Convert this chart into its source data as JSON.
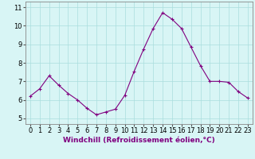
{
  "x": [
    0,
    1,
    2,
    3,
    4,
    5,
    6,
    7,
    8,
    9,
    10,
    11,
    12,
    13,
    14,
    15,
    16,
    17,
    18,
    19,
    20,
    21,
    22,
    23
  ],
  "y": [
    6.2,
    6.6,
    7.3,
    6.8,
    6.35,
    6.0,
    5.55,
    5.2,
    5.35,
    5.5,
    6.25,
    7.55,
    8.75,
    9.85,
    10.7,
    10.35,
    9.85,
    8.85,
    7.85,
    7.0,
    7.0,
    6.95,
    6.45,
    6.1
  ],
  "line_color": "#800080",
  "marker": "+",
  "marker_size": 3,
  "bg_color": "#d8f5f5",
  "grid_color": "#aadddd",
  "ylabel_ticks": [
    5,
    6,
    7,
    8,
    9,
    10,
    11
  ],
  "xlabel": "Windchill (Refroidissement éolien,°C)",
  "xlim": [
    -0.5,
    23.5
  ],
  "ylim": [
    4.7,
    11.3
  ],
  "xlabel_fontsize": 6.5,
  "tick_fontsize": 6,
  "line_width": 0.8
}
